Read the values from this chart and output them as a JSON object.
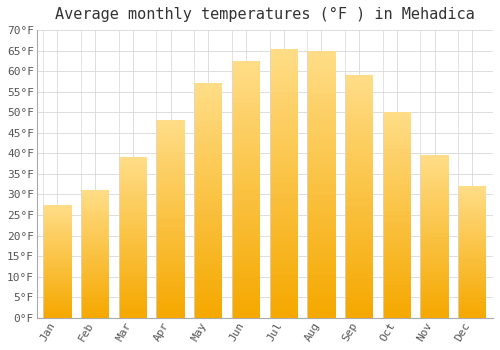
{
  "title": "Average monthly temperatures (°F ) in Mehadica",
  "months": [
    "Jan",
    "Feb",
    "Mar",
    "Apr",
    "May",
    "Jun",
    "Jul",
    "Aug",
    "Sep",
    "Oct",
    "Nov",
    "Dec"
  ],
  "values": [
    27.5,
    31.0,
    39.0,
    48.0,
    57.0,
    62.5,
    65.5,
    65.0,
    59.0,
    50.0,
    39.5,
    32.0
  ],
  "bar_color_bottom": "#F5A800",
  "bar_color_top": "#FFDD88",
  "bar_edge_color": "#E8E8E8",
  "ylim": [
    0,
    70
  ],
  "yticks": [
    0,
    5,
    10,
    15,
    20,
    25,
    30,
    35,
    40,
    45,
    50,
    55,
    60,
    65,
    70
  ],
  "background_color": "#ffffff",
  "grid_color": "#d8d8d8",
  "title_fontsize": 11,
  "tick_fontsize": 8,
  "font_family": "monospace"
}
